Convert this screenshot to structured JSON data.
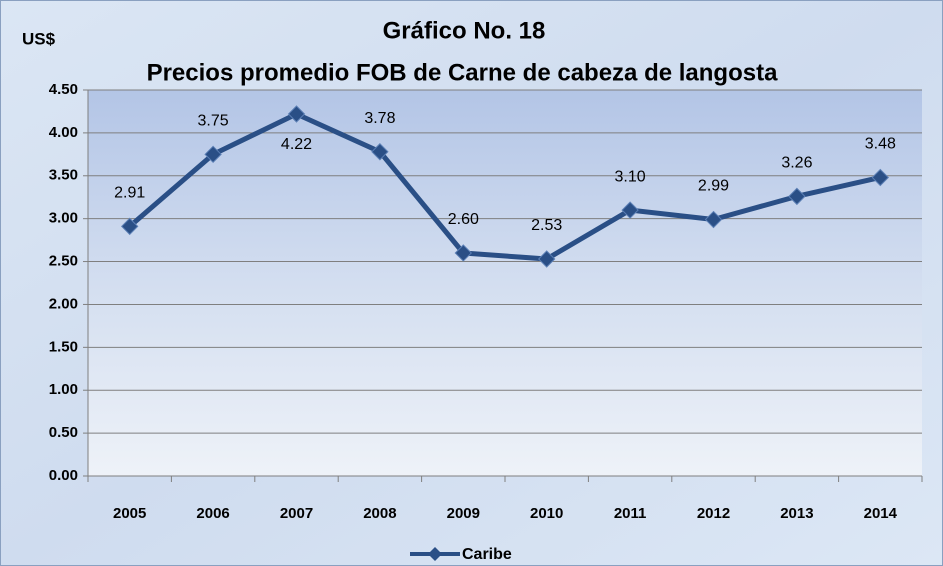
{
  "chart_data": {
    "type": "line",
    "title": "Gráfico No. 18",
    "subtitle": "Precios promedio FOB de Carne de cabeza de langosta",
    "y_label": "US$",
    "categories": [
      "2005",
      "2006",
      "2007",
      "2008",
      "2009",
      "2010",
      "2011",
      "2012",
      "2013",
      "2014"
    ],
    "series": [
      {
        "name": "Caribe",
        "color": "#2a4f86",
        "values": [
          2.91,
          3.75,
          4.22,
          3.78,
          2.6,
          2.53,
          3.1,
          2.99,
          3.26,
          3.48
        ],
        "value_labels": [
          "2.91",
          "3.75",
          "4.22",
          "3.78",
          "2.60",
          "2.53",
          "3.10",
          "2.99",
          "3.26",
          "3.48"
        ]
      }
    ],
    "ylim": [
      0,
      4.5
    ],
    "yticks": [
      {
        "value": 0,
        "label": "0.00"
      },
      {
        "value": 0.5,
        "label": "0.50"
      },
      {
        "value": 1,
        "label": "1.00"
      },
      {
        "value": 1.5,
        "label": "1.50"
      },
      {
        "value": 2,
        "label": "2.00"
      },
      {
        "value": 2.5,
        "label": "2.50"
      },
      {
        "value": 3,
        "label": "3.00"
      },
      {
        "value": 3.5,
        "label": "3.50"
      },
      {
        "value": 4,
        "label": "4.00"
      },
      {
        "value": 4.5,
        "label": "4.50"
      }
    ],
    "grid": true,
    "legend": "bottom"
  }
}
